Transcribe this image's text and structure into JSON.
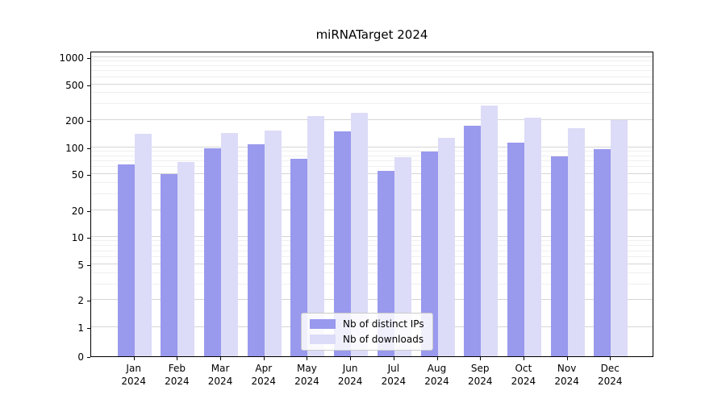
{
  "title": "miRNATarget 2024",
  "chart_data": {
    "type": "bar",
    "title": "miRNATarget 2024",
    "categories": [
      "Jan 2024",
      "Feb 2024",
      "Mar 2024",
      "Apr 2024",
      "May 2024",
      "Jun 2024",
      "Jul 2024",
      "Aug 2024",
      "Sep 2024",
      "Oct 2024",
      "Nov 2024",
      "Dec 2024"
    ],
    "series": [
      {
        "name": "Nb of distinct IPs",
        "color": "#9999ee",
        "values": [
          65,
          50,
          97,
          107,
          75,
          150,
          55,
          90,
          175,
          113,
          80,
          95
        ]
      },
      {
        "name": "Nb of downloads",
        "color": "#dcdcf8",
        "values": [
          140,
          68,
          143,
          152,
          220,
          240,
          78,
          127,
          290,
          215,
          163,
          200
        ]
      }
    ],
    "yscale": "symlog",
    "yticks": [
      0,
      1,
      2,
      5,
      10,
      20,
      50,
      100,
      200,
      500,
      1000
    ],
    "ylim": [
      0,
      1175
    ],
    "grid": true,
    "legend_position": "lower center"
  }
}
